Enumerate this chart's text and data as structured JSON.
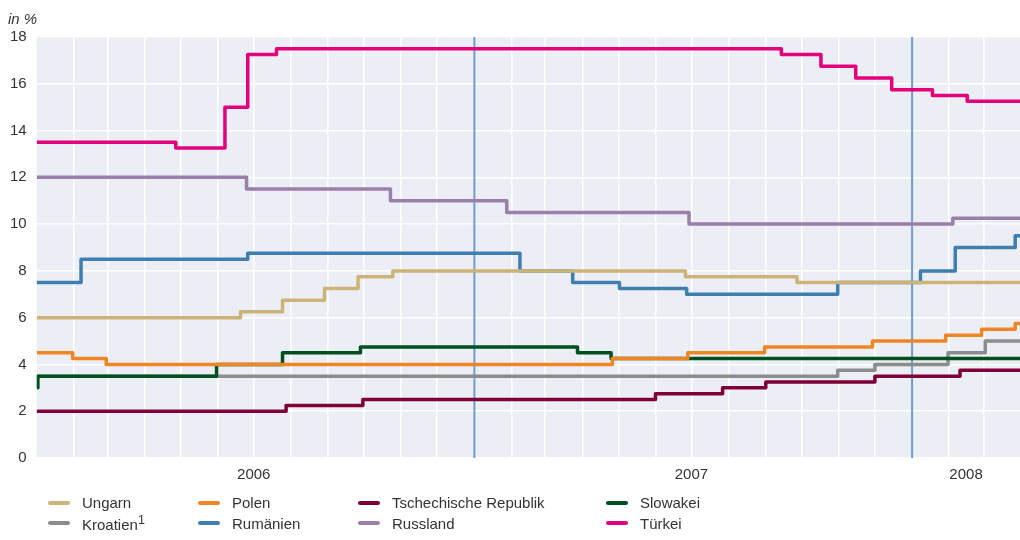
{
  "chart_data": {
    "type": "step",
    "ylabel": "in %",
    "xlim": [
      "2006-01-01",
      "2008-03-31"
    ],
    "ylim": [
      0,
      18
    ],
    "yticks": [
      0,
      2,
      4,
      6,
      8,
      10,
      12,
      14,
      16,
      18
    ],
    "xticks": [
      {
        "value": "2006-02-01",
        "label": null
      },
      {
        "value": "2006-03-01",
        "label": null
      },
      {
        "value": "2006-04-01",
        "label": null
      },
      {
        "value": "2006-05-01",
        "label": null
      },
      {
        "value": "2006-06-01",
        "label": null
      },
      {
        "value": "2006-07-01",
        "label": "2006"
      },
      {
        "value": "2006-08-01",
        "label": null
      },
      {
        "value": "2006-09-01",
        "label": null
      },
      {
        "value": "2006-10-01",
        "label": null
      },
      {
        "value": "2006-11-01",
        "label": null
      },
      {
        "value": "2006-12-01",
        "label": null
      },
      {
        "value": "2007-02-01",
        "label": null
      },
      {
        "value": "2007-03-01",
        "label": null
      },
      {
        "value": "2007-04-01",
        "label": null
      },
      {
        "value": "2007-05-01",
        "label": null
      },
      {
        "value": "2007-06-01",
        "label": null
      },
      {
        "value": "2007-07-01",
        "label": "2007"
      },
      {
        "value": "2007-08-01",
        "label": null
      },
      {
        "value": "2007-09-01",
        "label": null
      },
      {
        "value": "2007-10-01",
        "label": null
      },
      {
        "value": "2007-11-01",
        "label": null
      },
      {
        "value": "2007-12-01",
        "label": null
      },
      {
        "value": "2008-02-01",
        "label": null
      },
      {
        "value": "2008-02-15",
        "label": "2008"
      },
      {
        "value": "2008-03-01",
        "label": null
      }
    ],
    "grid": true,
    "legend": "bottom",
    "line_style": "solid",
    "marker": "none",
    "ref_lines": [
      {
        "axis": "x",
        "value": "2007-01-01",
        "color": "#6f9fc8"
      },
      {
        "axis": "x",
        "value": "2008-01-01",
        "color": "#6f9fc8"
      }
    ],
    "series": [
      {
        "name": "Ungarn",
        "color": "#cdb378",
        "x": [
          "2006-01-01",
          "2006-06-20",
          "2006-07-25",
          "2006-08-29",
          "2006-09-26",
          "2006-10-25",
          "2007-06-26",
          "2007-09-27",
          "2008-03-31"
        ],
        "values": [
          6,
          6.25,
          6.75,
          7.25,
          7.75,
          8,
          7.75,
          7.5,
          7.5
        ]
      },
      {
        "name": "Polen",
        "color": "#ef8523",
        "x": [
          "2006-01-01",
          "2006-01-31",
          "2006-02-28",
          "2007-04-26",
          "2007-06-28",
          "2007-08-31",
          "2007-11-29",
          "2008-01-29",
          "2008-02-28",
          "2008-03-27",
          "2008-03-31"
        ],
        "values": [
          4.5,
          4.25,
          4,
          4.25,
          4.5,
          4.75,
          5,
          5.25,
          5.5,
          5.75,
          5.75
        ]
      },
      {
        "name": "Tschechische Republik",
        "color": "#7f0038",
        "x": [
          "2006-01-01",
          "2006-07-28",
          "2006-09-30",
          "2007-06-01",
          "2007-07-27",
          "2007-09-01",
          "2007-12-01",
          "2008-02-10",
          "2008-03-31"
        ],
        "values": [
          2,
          2.25,
          2.5,
          2.75,
          3,
          3.25,
          3.5,
          3.75,
          3.75
        ]
      },
      {
        "name": "Slowakei",
        "color": "#004f1e",
        "x": [
          "2006-01-01",
          "2006-01-02",
          "2006-05-31",
          "2006-07-25",
          "2006-09-28",
          "2007-03-28",
          "2007-04-25",
          "2008-03-31"
        ],
        "values": [
          3,
          3.5,
          4,
          4.5,
          4.75,
          4.5,
          4.25,
          4.25
        ]
      },
      {
        "name": "Kroatien$^{1}$",
        "color": "#8c8c8c",
        "x": [
          "2006-01-01",
          "2007-10-31",
          "2007-12-01",
          "2008-01-31",
          "2008-03-02",
          "2008-03-31"
        ],
        "values": [
          3.5,
          3.75,
          4,
          4.5,
          5,
          5
        ]
      },
      {
        "name": "Rumänien",
        "color": "#3f7fb0",
        "x": [
          "2006-01-01",
          "2006-02-07",
          "2006-06-26",
          "2007-02-08",
          "2007-03-24",
          "2007-05-02",
          "2007-06-27",
          "2007-10-31",
          "2008-01-08",
          "2008-02-06",
          "2008-03-27",
          "2008-03-31"
        ],
        "values": [
          7.5,
          8.5,
          8.75,
          8,
          7.5,
          7.25,
          7,
          7.5,
          8,
          9,
          9.5,
          9.5
        ]
      },
      {
        "name": "Russland",
        "color": "#9b7fab",
        "x": [
          "2006-01-01",
          "2006-06-25",
          "2006-10-23",
          "2007-01-28",
          "2007-06-29",
          "2008-02-04",
          "2008-03-31"
        ],
        "values": [
          12,
          11.5,
          11,
          10.5,
          10,
          10.25,
          10.25
        ]
      },
      {
        "name": "Türkei",
        "color": "#e3007b",
        "x": [
          "2006-01-01",
          "2006-04-27",
          "2006-06-07",
          "2006-06-26",
          "2006-07-20",
          "2007-09-14",
          "2007-10-17",
          "2007-11-15",
          "2007-12-15",
          "2008-01-18",
          "2008-02-16",
          "2008-03-31"
        ],
        "values": [
          13.5,
          13.25,
          15,
          17.25,
          17.5,
          17.25,
          16.75,
          16.25,
          15.75,
          15.5,
          15.25,
          15.25
        ]
      }
    ]
  }
}
